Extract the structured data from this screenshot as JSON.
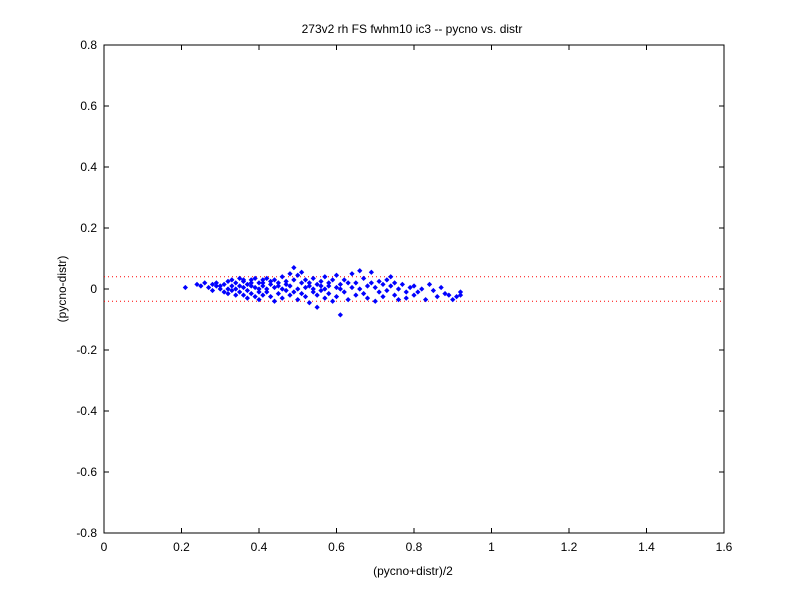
{
  "chart_data": {
    "type": "scatter",
    "title": "273v2 rh FS fwhm10 ic3 -- pycno vs. distr",
    "xlabel": "(pycno+distr)/2",
    "ylabel": "(pycno-distr)",
    "xlim": [
      0,
      1.6
    ],
    "ylim": [
      -0.8,
      0.8
    ],
    "xticks": [
      "0",
      "0.2",
      "0.4",
      "0.6",
      "0.8",
      "1",
      "1.2",
      "1.4",
      "1.6"
    ],
    "yticks": [
      "-0.8",
      "-0.6",
      "-0.4",
      "-0.2",
      "0",
      "0.2",
      "0.4",
      "0.6",
      "0.8"
    ],
    "grid": false,
    "colors": {
      "points": "#0000ff",
      "reference_lines": "#ff0000"
    },
    "reference_lines": [
      0.04,
      -0.04
    ],
    "series": [
      {
        "marker": "diamond",
        "points": [
          [
            0.21,
            0.005
          ],
          [
            0.24,
            0.015
          ],
          [
            0.25,
            0.01
          ],
          [
            0.26,
            0.02
          ],
          [
            0.27,
            0.005
          ],
          [
            0.28,
            0.015
          ],
          [
            0.28,
            -0.005
          ],
          [
            0.29,
            0.01
          ],
          [
            0.29,
            0.02
          ],
          [
            0.3,
            0.0
          ],
          [
            0.3,
            0.01
          ],
          [
            0.31,
            -0.01
          ],
          [
            0.31,
            0.015
          ],
          [
            0.32,
            0.025
          ],
          [
            0.32,
            0.0
          ],
          [
            0.32,
            -0.015
          ],
          [
            0.33,
            0.01
          ],
          [
            0.33,
            0.03
          ],
          [
            0.33,
            -0.005
          ],
          [
            0.34,
            0.02
          ],
          [
            0.34,
            0.0
          ],
          [
            0.34,
            -0.02
          ],
          [
            0.35,
            0.035
          ],
          [
            0.35,
            0.01
          ],
          [
            0.35,
            -0.01
          ],
          [
            0.36,
            0.025
          ],
          [
            0.36,
            0.005
          ],
          [
            0.36,
            -0.02
          ],
          [
            0.36,
            0.03
          ],
          [
            0.37,
            0.015
          ],
          [
            0.37,
            -0.005
          ],
          [
            0.37,
            -0.03
          ],
          [
            0.38,
            0.03
          ],
          [
            0.38,
            0.01
          ],
          [
            0.38,
            -0.015
          ],
          [
            0.38,
            0.02
          ],
          [
            0.39,
            0.005
          ],
          [
            0.39,
            -0.025
          ],
          [
            0.39,
            0.035
          ],
          [
            0.4,
            0.02
          ],
          [
            0.4,
            0.0
          ],
          [
            0.4,
            -0.01
          ],
          [
            0.4,
            -0.035
          ],
          [
            0.41,
            0.03
          ],
          [
            0.41,
            0.01
          ],
          [
            0.41,
            -0.02
          ],
          [
            0.41,
            0.02
          ],
          [
            0.42,
            0.0
          ],
          [
            0.42,
            -0.01
          ],
          [
            0.42,
            0.035
          ],
          [
            0.43,
            0.015
          ],
          [
            0.43,
            -0.025
          ],
          [
            0.43,
            0.025
          ],
          [
            0.44,
            0.005
          ],
          [
            0.44,
            -0.04
          ],
          [
            0.44,
            0.03
          ],
          [
            0.45,
            0.01
          ],
          [
            0.45,
            -0.015
          ],
          [
            0.45,
            0.02
          ],
          [
            0.46,
            0.0
          ],
          [
            0.46,
            -0.03
          ],
          [
            0.46,
            0.04
          ],
          [
            0.47,
            0.015
          ],
          [
            0.47,
            -0.005
          ],
          [
            0.47,
            0.025
          ],
          [
            0.48,
            0.05
          ],
          [
            0.48,
            -0.02
          ],
          [
            0.48,
            0.01
          ],
          [
            0.49,
            0.07
          ],
          [
            0.49,
            0.03
          ],
          [
            0.49,
            -0.01
          ],
          [
            0.5,
            0.045
          ],
          [
            0.5,
            0.0
          ],
          [
            0.5,
            -0.035
          ],
          [
            0.51,
            0.02
          ],
          [
            0.51,
            -0.015
          ],
          [
            0.51,
            0.055
          ],
          [
            0.52,
            0.005
          ],
          [
            0.52,
            -0.025
          ],
          [
            0.52,
            0.03
          ],
          [
            0.53,
            0.01
          ],
          [
            0.53,
            -0.045
          ],
          [
            0.53,
            0.02
          ],
          [
            0.54,
            0.0
          ],
          [
            0.54,
            -0.01
          ],
          [
            0.54,
            0.035
          ],
          [
            0.55,
            0.015
          ],
          [
            0.55,
            -0.02
          ],
          [
            0.55,
            -0.06
          ],
          [
            0.56,
            0.025
          ],
          [
            0.56,
            -0.005
          ],
          [
            0.56,
            0.01
          ],
          [
            0.57,
            0.04
          ],
          [
            0.57,
            -0.03
          ],
          [
            0.57,
            0.0
          ],
          [
            0.58,
            0.02
          ],
          [
            0.58,
            -0.015
          ],
          [
            0.58,
            0.01
          ],
          [
            0.59,
            -0.04
          ],
          [
            0.59,
            0.03
          ],
          [
            0.6,
            0.005
          ],
          [
            0.6,
            -0.025
          ],
          [
            0.6,
            0.045
          ],
          [
            0.61,
            0.015
          ],
          [
            0.61,
            -0.085
          ],
          [
            0.61,
            0.0
          ],
          [
            0.62,
            0.03
          ],
          [
            0.62,
            -0.01
          ],
          [
            0.63,
            0.02
          ],
          [
            0.63,
            -0.035
          ],
          [
            0.64,
            0.05
          ],
          [
            0.64,
            0.005
          ],
          [
            0.65,
            -0.02
          ],
          [
            0.65,
            0.02
          ],
          [
            0.66,
            0.06
          ],
          [
            0.66,
            0.0
          ],
          [
            0.67,
            -0.015
          ],
          [
            0.67,
            0.035
          ],
          [
            0.68,
            0.01
          ],
          [
            0.68,
            -0.03
          ],
          [
            0.69,
            0.055
          ],
          [
            0.69,
            0.02
          ],
          [
            0.7,
            0.005
          ],
          [
            0.7,
            -0.04
          ],
          [
            0.71,
            0.025
          ],
          [
            0.71,
            -0.01
          ],
          [
            0.72,
            0.015
          ],
          [
            0.72,
            -0.025
          ],
          [
            0.73,
            0.03
          ],
          [
            0.73,
            -0.005
          ],
          [
            0.74,
            0.04
          ],
          [
            0.74,
            0.01
          ],
          [
            0.75,
            -0.02
          ],
          [
            0.75,
            0.02
          ],
          [
            0.76,
            0.0
          ],
          [
            0.76,
            -0.035
          ],
          [
            0.77,
            0.015
          ],
          [
            0.78,
            -0.01
          ],
          [
            0.78,
            -0.03
          ],
          [
            0.79,
            0.005
          ],
          [
            0.8,
            -0.02
          ],
          [
            0.8,
            0.01
          ],
          [
            0.81,
            -0.01
          ],
          [
            0.82,
            0.0
          ],
          [
            0.83,
            -0.035
          ],
          [
            0.84,
            0.015
          ],
          [
            0.85,
            -0.005
          ],
          [
            0.86,
            -0.025
          ],
          [
            0.87,
            0.005
          ],
          [
            0.88,
            -0.015
          ],
          [
            0.89,
            -0.02
          ],
          [
            0.9,
            -0.035
          ],
          [
            0.91,
            -0.025
          ],
          [
            0.92,
            -0.01
          ],
          [
            0.92,
            -0.02
          ]
        ]
      }
    ]
  }
}
